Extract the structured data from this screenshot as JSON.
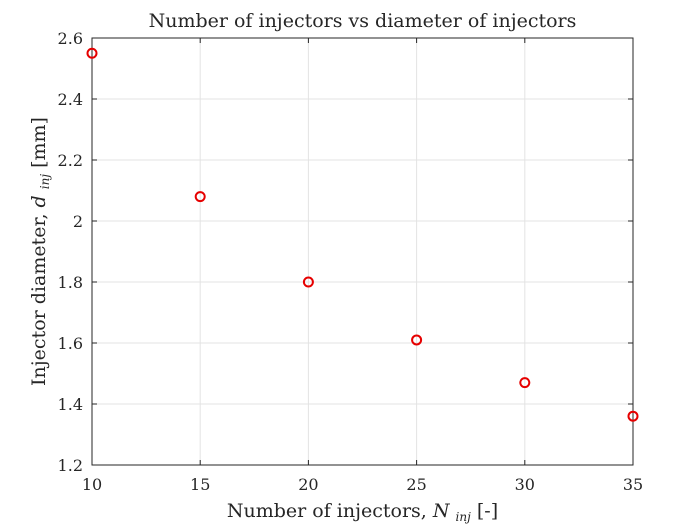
{
  "chart_data": {
    "type": "scatter",
    "title": "Number of injectors vs diameter of injectors",
    "xlabel": {
      "prefix": "Number of injectors, ",
      "symbol": "N",
      "subscript": "inj",
      "suffix": " [-]"
    },
    "ylabel": {
      "prefix": "Injector diameter, ",
      "symbol": "d",
      "subscript": "inj",
      "suffix": " [mm]"
    },
    "xlim": [
      10,
      35
    ],
    "ylim": [
      1.2,
      2.6
    ],
    "xticks": [
      10,
      15,
      20,
      25,
      30,
      35
    ],
    "yticks": [
      1.2,
      1.4,
      1.6,
      1.8,
      2,
      2.2,
      2.4,
      2.6
    ],
    "xtick_labels": [
      "10",
      "15",
      "20",
      "25",
      "30",
      "35"
    ],
    "ytick_labels": [
      "1.2",
      "1.4",
      "1.6",
      "1.8",
      "2",
      "2.2",
      "2.4",
      "2.6"
    ],
    "grid": true,
    "marker_color": "#e60000",
    "marker": "circle-open",
    "series": [
      {
        "x": [
          10,
          15,
          20,
          25,
          30,
          35
        ],
        "y": [
          2.55,
          2.08,
          1.8,
          1.61,
          1.47,
          1.36
        ]
      }
    ]
  }
}
